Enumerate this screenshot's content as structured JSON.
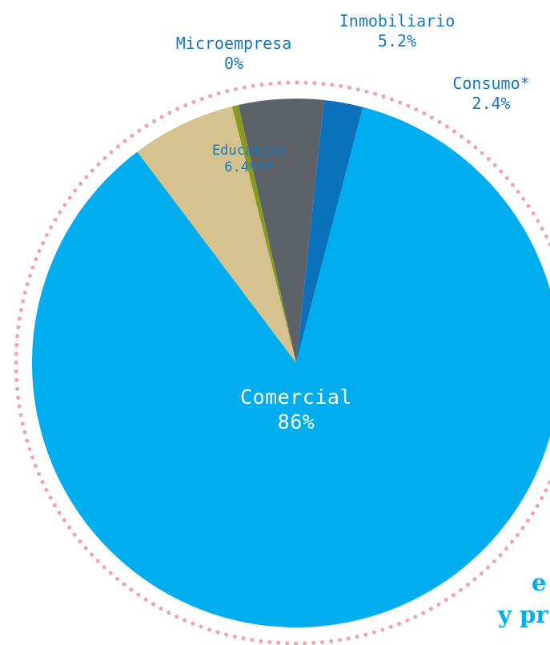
{
  "chart_data": {
    "type": "pie",
    "title": "",
    "slices": [
      {
        "name": "Comercial",
        "label": "Comercial",
        "value_label": "86%",
        "value": 86.0,
        "color": "#00aeef"
      },
      {
        "name": "Educativo",
        "label": "Educativo",
        "value_label": "6.4%**",
        "value": 6.4,
        "color": "#d6c28f"
      },
      {
        "name": "Microempresa",
        "label": "Microempresa",
        "value_label": "0%",
        "value": 0.0,
        "drawn_value": 0.4,
        "color": "#8a9a1e"
      },
      {
        "name": "Inmobiliario",
        "label": "Inmobiliario",
        "value_label": "5.2%",
        "value": 5.2,
        "color": "#5d6268"
      },
      {
        "name": "Consumo",
        "label": "Consumo*",
        "value_label": "2.4%",
        "value": 2.4,
        "color": "#0a72bc"
      }
    ],
    "ring_color": "#f2a3ae",
    "ring_style": "dotted"
  },
  "partial_text": {
    "line1": "e",
    "line2": "y pr",
    "color": "#00aeef"
  }
}
